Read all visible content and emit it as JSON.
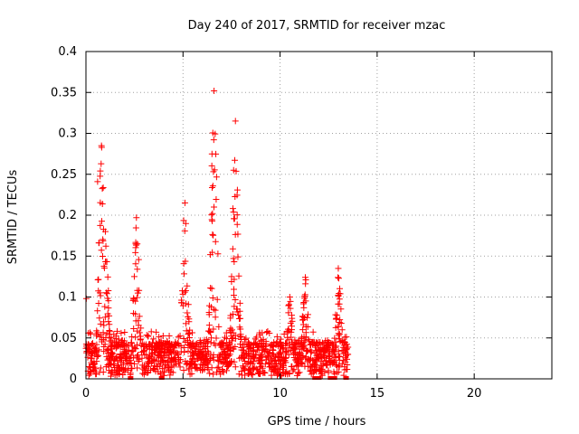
{
  "chart_data": {
    "type": "scatter",
    "title": "Day 240 of 2017, SRMTID for receiver mzac",
    "xlabel": "GPS time / hours",
    "ylabel": "SRMTID / TECUs",
    "xlim": [
      0,
      24
    ],
    "ylim": [
      0,
      0.4
    ],
    "xticks": [
      0,
      5,
      10,
      15,
      20
    ],
    "yticks": [
      0,
      0.05,
      0.1,
      0.15,
      0.2,
      0.25,
      0.3,
      0.35,
      0.4
    ],
    "ytick_labels": [
      "0",
      "0.05",
      "0.1",
      "0.15",
      "0.2",
      "0.25",
      "0.3",
      "0.35",
      "0.4"
    ],
    "grid": true,
    "marker": "+",
    "color": "#ff0000",
    "series": [
      {
        "name": "SRMTID",
        "x_range_hours": [
          0,
          13.5
        ],
        "baseline_tecu": 0.045,
        "peaks": [
          {
            "x": 0.8,
            "y": 0.285
          },
          {
            "x": 1.0,
            "y": 0.18
          },
          {
            "x": 2.6,
            "y": 0.197
          },
          {
            "x": 5.1,
            "y": 0.215
          },
          {
            "x": 6.6,
            "y": 0.352
          },
          {
            "x": 7.7,
            "y": 0.315
          },
          {
            "x": 10.5,
            "y": 0.1
          },
          {
            "x": 11.3,
            "y": 0.124
          },
          {
            "x": 13.0,
            "y": 0.135
          }
        ],
        "outliers": [
          {
            "x": 0.02,
            "y": 0.098
          },
          {
            "x": 0.6,
            "y": 0.241
          }
        ]
      }
    ],
    "zero_markers_hours": [
      2.3,
      3.9,
      11.8,
      12.0,
      12.6,
      12.8,
      13.4
    ]
  }
}
